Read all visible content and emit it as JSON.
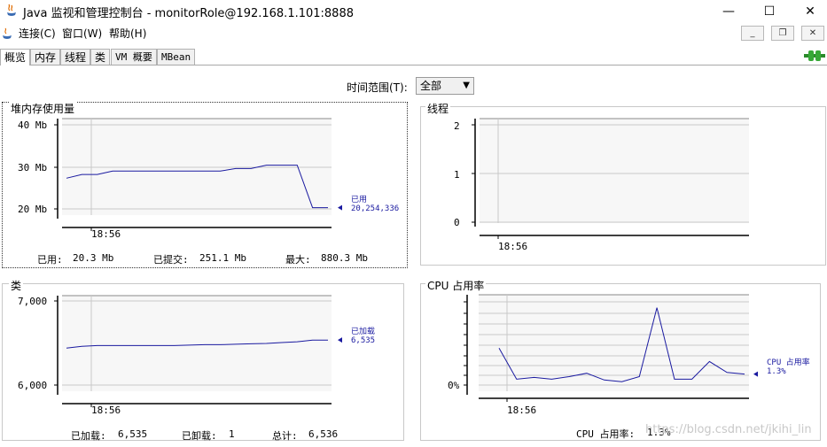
{
  "window": {
    "title": "Java 监视和管理控制台 - monitorRole@192.168.1.101:8888",
    "controls": {
      "minimize": "—",
      "maximize": "☐",
      "close": "✕"
    }
  },
  "menu": {
    "items": [
      "连接(C)",
      "窗口(W)",
      "帮助(H)"
    ]
  },
  "mdi_controls": {
    "minimize": "_",
    "restore": "❐",
    "close": "✕"
  },
  "tabs": [
    {
      "label": "概览",
      "active": true
    },
    {
      "label": "内存"
    },
    {
      "label": "线程"
    },
    {
      "label": "类"
    },
    {
      "label": "VM 概要"
    },
    {
      "label": "MBean"
    }
  ],
  "time_range": {
    "label": "时间范围(T):",
    "value": "全部"
  },
  "panels": {
    "heap": {
      "title": "堆内存使用量",
      "y_ticks": [
        "40 Mb",
        "30 Mb",
        "20 Mb"
      ],
      "x_tick": "18:56",
      "legend_label": "已用",
      "legend_value": "20,254,336",
      "stats": {
        "used_label": "已用:",
        "used_value": "20.3  Mb",
        "committed_label": "已提交:",
        "committed_value": "251.1  Mb",
        "max_label": "最大:",
        "max_value": "880.3  Mb"
      }
    },
    "threads": {
      "title": "线程",
      "y_ticks": [
        "2",
        "1",
        "0"
      ],
      "x_tick": "18:56"
    },
    "classes": {
      "title": "类",
      "y_ticks": [
        "7,000",
        "6,000"
      ],
      "x_tick": "18:56",
      "legend_label": "已加载",
      "legend_value": "6,535",
      "stats": {
        "loaded_label": "已加载:",
        "loaded_value": "6,535",
        "unloaded_label": "已卸载:",
        "unloaded_value": "1",
        "total_label": "总计:",
        "total_value": "6,536"
      }
    },
    "cpu": {
      "title": "CPU 占用率",
      "y_ticks": [
        "0%"
      ],
      "x_tick": "18:56",
      "legend_label": "CPU 占用率",
      "legend_value": "1.3%",
      "stats_label": "CPU 占用率:",
      "stats_value": "1.3%"
    }
  },
  "watermark": "https://blog.csdn.net/jkihi_lin",
  "colors": {
    "line": "#1a1aa0",
    "plot_bg": "#f7f7f7",
    "grid": "#c8c8c8"
  },
  "chart_data": [
    {
      "type": "line",
      "title": "堆内存使用量",
      "ylabel": "",
      "ylim": [
        20,
        40
      ],
      "x_tick": "18:56",
      "series": [
        {
          "name": "已用",
          "values": [
            27.3,
            28.2,
            28.2,
            29.0,
            29.0,
            29.0,
            29.0,
            29.0,
            29.0,
            29.0,
            29.0,
            29.6,
            29.6,
            30.4,
            30.4,
            30.4,
            20.3,
            20.3
          ]
        }
      ]
    },
    {
      "type": "line",
      "title": "线程",
      "ylim": [
        0,
        2
      ],
      "x_tick": "18:56",
      "series": []
    },
    {
      "type": "line",
      "title": "类",
      "ylim": [
        6000,
        7000
      ],
      "x_tick": "18:56",
      "series": [
        {
          "name": "已加载",
          "values": [
            6440,
            6460,
            6470,
            6470,
            6470,
            6470,
            6470,
            6470,
            6475,
            6480,
            6480,
            6485,
            6490,
            6495,
            6505,
            6515,
            6535,
            6535
          ]
        }
      ]
    },
    {
      "type": "line",
      "title": "CPU 占用率",
      "x_tick": "18:56",
      "series": [
        {
          "name": "CPU 占用率",
          "values": [
            4.4,
            0.7,
            0.9,
            0.7,
            1.0,
            1.4,
            0.6,
            0.4,
            1.0,
            9.2,
            0.7,
            0.7,
            2.8,
            1.5,
            1.3
          ]
        }
      ]
    }
  ]
}
